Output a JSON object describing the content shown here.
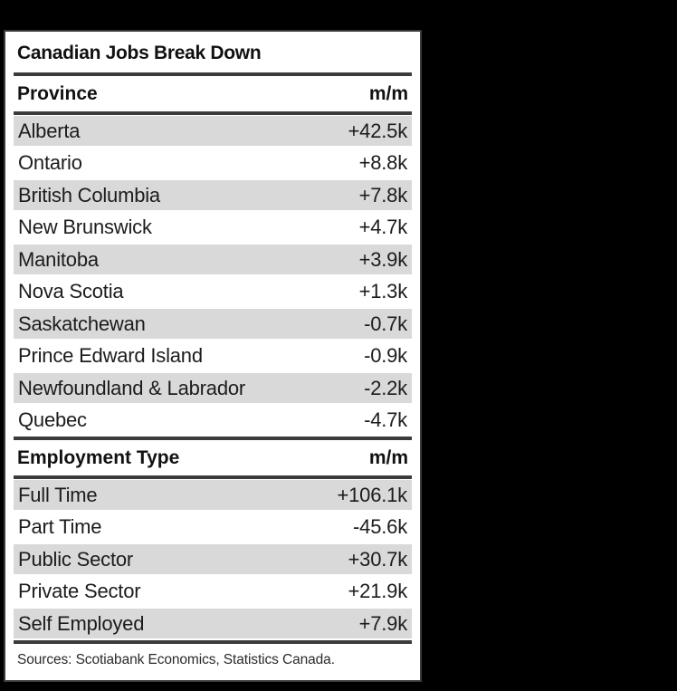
{
  "title": "Canadian Jobs Break Down",
  "source": "Sources: Scotiabank Economics, Statistics Canada.",
  "colors": {
    "page_background": "#000000",
    "card_background": "#ffffff",
    "separator": "#3b3b3b",
    "shaded_row": "#d9d9d9",
    "text": "#1a1a1a"
  },
  "sections": [
    {
      "header": "Province",
      "unit": "m/m",
      "rows": [
        {
          "label": "Alberta",
          "value": "+42.5k"
        },
        {
          "label": "Ontario",
          "value": "+8.8k"
        },
        {
          "label": "British Columbia",
          "value": "+7.8k"
        },
        {
          "label": "New Brunswick",
          "value": "+4.7k"
        },
        {
          "label": "Manitoba",
          "value": "+3.9k"
        },
        {
          "label": "Nova Scotia",
          "value": "+1.3k"
        },
        {
          "label": "Saskatchewan",
          "value": "-0.7k"
        },
        {
          "label": "Prince Edward Island",
          "value": "-0.9k"
        },
        {
          "label": "Newfoundland & Labrador",
          "value": "-2.2k"
        },
        {
          "label": "Quebec",
          "value": "-4.7k"
        }
      ]
    },
    {
      "header": "Employment Type",
      "unit": "m/m",
      "rows": [
        {
          "label": "Full Time",
          "value": "+106.1k"
        },
        {
          "label": "Part Time",
          "value": "-45.6k"
        },
        {
          "label": "Public Sector",
          "value": "+30.7k"
        },
        {
          "label": "Private Sector",
          "value": "+21.9k"
        },
        {
          "label": "Self Employed",
          "value": "+7.9k"
        }
      ]
    }
  ],
  "chart_data": [
    {
      "type": "table",
      "title": "Canadian Jobs Break Down",
      "columns": [
        "Province",
        "m/m"
      ],
      "rows": [
        [
          "Alberta",
          "+42.5k"
        ],
        [
          "Ontario",
          "+8.8k"
        ],
        [
          "British Columbia",
          "+7.8k"
        ],
        [
          "New Brunswick",
          "+4.7k"
        ],
        [
          "Manitoba",
          "+3.9k"
        ],
        [
          "Nova Scotia",
          "+1.3k"
        ],
        [
          "Saskatchewan",
          "-0.7k"
        ],
        [
          "Prince Edward Island",
          "-0.9k"
        ],
        [
          "Newfoundland & Labrador",
          "-2.2k"
        ],
        [
          "Quebec",
          "-4.7k"
        ]
      ],
      "values_thousands": [
        42.5,
        8.8,
        7.8,
        4.7,
        3.9,
        1.3,
        -0.7,
        -0.9,
        -2.2,
        -4.7
      ]
    },
    {
      "type": "table",
      "columns": [
        "Employment Type",
        "m/m"
      ],
      "rows": [
        [
          "Full Time",
          "+106.1k"
        ],
        [
          "Part Time",
          "-45.6k"
        ],
        [
          "Public Sector",
          "+30.7k"
        ],
        [
          "Private Sector",
          "+21.9k"
        ],
        [
          "Self Employed",
          "+7.9k"
        ]
      ],
      "values_thousands": [
        106.1,
        -45.6,
        30.7,
        21.9,
        7.9
      ],
      "footnote": "Sources: Scotiabank Economics, Statistics Canada."
    }
  ]
}
